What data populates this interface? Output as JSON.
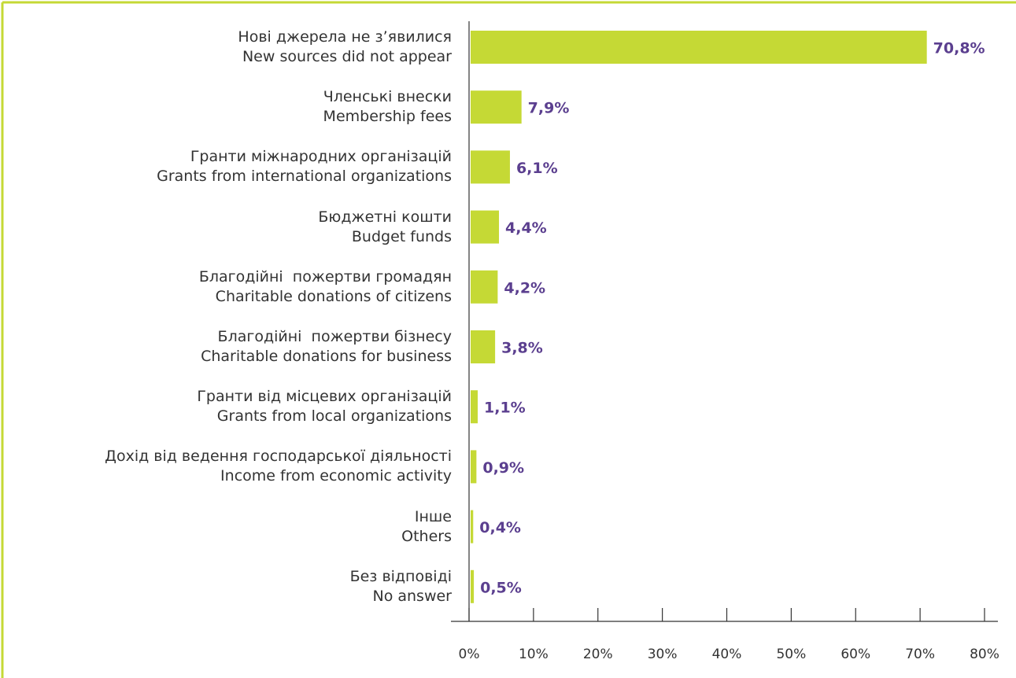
{
  "chart_data": {
    "type": "bar",
    "orientation": "horizontal",
    "categories": [
      "Нові джерела не з’явилися\nNew sources did not appear",
      "Членські внески\nMembership fees",
      "Гранти міжнародних організацій\nGrants from international organizations",
      "Бюджетні кошти\nBudget funds",
      "Благодійні  пожертви громадян\nCharitable donations of citizens",
      "Благодійні  пожертви бізнесу\nCharitable donations for business",
      "Гранти від місцевих організацій\nGrants from local organizations",
      "Дохід від ведення господарської діяльності\nIncome from economic activity",
      "Інше\nOthers",
      "Без відповіді\nNo answer"
    ],
    "values": [
      70.8,
      7.9,
      6.1,
      4.4,
      4.2,
      3.8,
      1.1,
      0.9,
      0.4,
      0.5
    ],
    "value_labels": [
      "70,8%",
      "7,9%",
      "6,1%",
      "4,4%",
      "4,2%",
      "3,8%",
      "1,1%",
      "0,9%",
      "0,4%",
      "0,5%"
    ],
    "color": "#c5d935",
    "xlim": [
      0,
      80
    ],
    "xticks": [
      {
        "value": 0,
        "label": "0%"
      },
      {
        "value": 10,
        "label": "10%"
      },
      {
        "value": 20,
        "label": "20%"
      },
      {
        "value": 30,
        "label": "30%"
      },
      {
        "value": 40,
        "label": "40%"
      },
      {
        "value": 50,
        "label": "50%"
      },
      {
        "value": 60,
        "label": "60%"
      },
      {
        "value": 70,
        "label": "70%"
      },
      {
        "value": 80,
        "label": "80%"
      }
    ]
  }
}
